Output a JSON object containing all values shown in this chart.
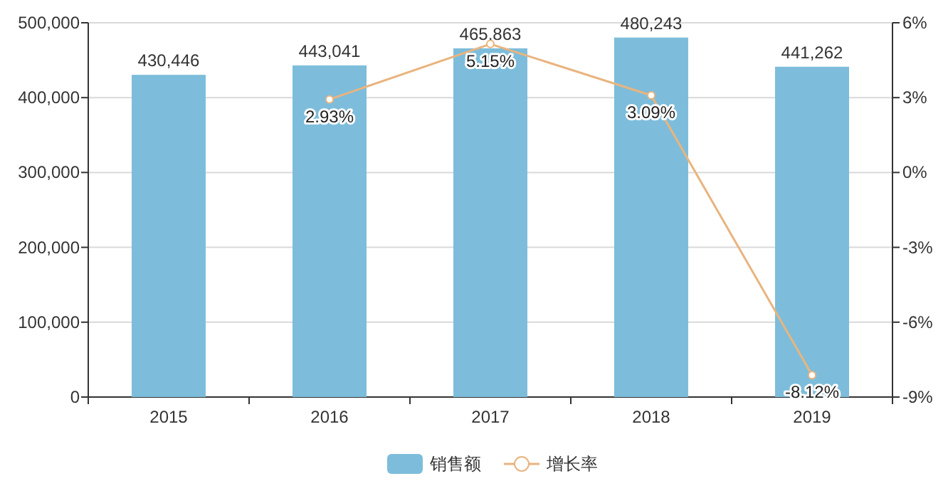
{
  "chart_data": {
    "type": "bar",
    "categories": [
      "2015",
      "2016",
      "2017",
      "2018",
      "2019"
    ],
    "series": [
      {
        "name": "销售额",
        "color": "#7dbddb",
        "values": [
          430446,
          443041,
          465863,
          480243,
          441262
        ],
        "value_labels": [
          "430,446",
          "443,041",
          "465,863",
          "480,243",
          "441,262"
        ]
      },
      {
        "name": "增长率",
        "type": "line",
        "axis": "y2",
        "color": "#e9b47f",
        "values": [
          null,
          2.93,
          5.15,
          3.09,
          -8.12
        ],
        "value_labels": [
          null,
          "2.93%",
          "5.15%",
          "3.09%",
          "-8.12%"
        ]
      }
    ],
    "ylim": [
      0,
      500000
    ],
    "yticks": [
      {
        "value": 0,
        "label": "0"
      },
      {
        "value": 100000,
        "label": "100,000"
      },
      {
        "value": 200000,
        "label": "200,000"
      },
      {
        "value": 300000,
        "label": "300,000"
      },
      {
        "value": 400000,
        "label": "400,000"
      },
      {
        "value": 500000,
        "label": "500,000"
      }
    ],
    "y2lim": [
      -9,
      6
    ],
    "y2ticks": [
      {
        "value": -9,
        "label": "-9%"
      },
      {
        "value": -6,
        "label": "-6%"
      },
      {
        "value": -3,
        "label": "-3%"
      },
      {
        "value": 0,
        "label": "0%"
      },
      {
        "value": 3,
        "label": "3%"
      },
      {
        "value": 6,
        "label": "6%"
      }
    ],
    "grid": "y",
    "legend": "bottom",
    "marker": "circle"
  }
}
